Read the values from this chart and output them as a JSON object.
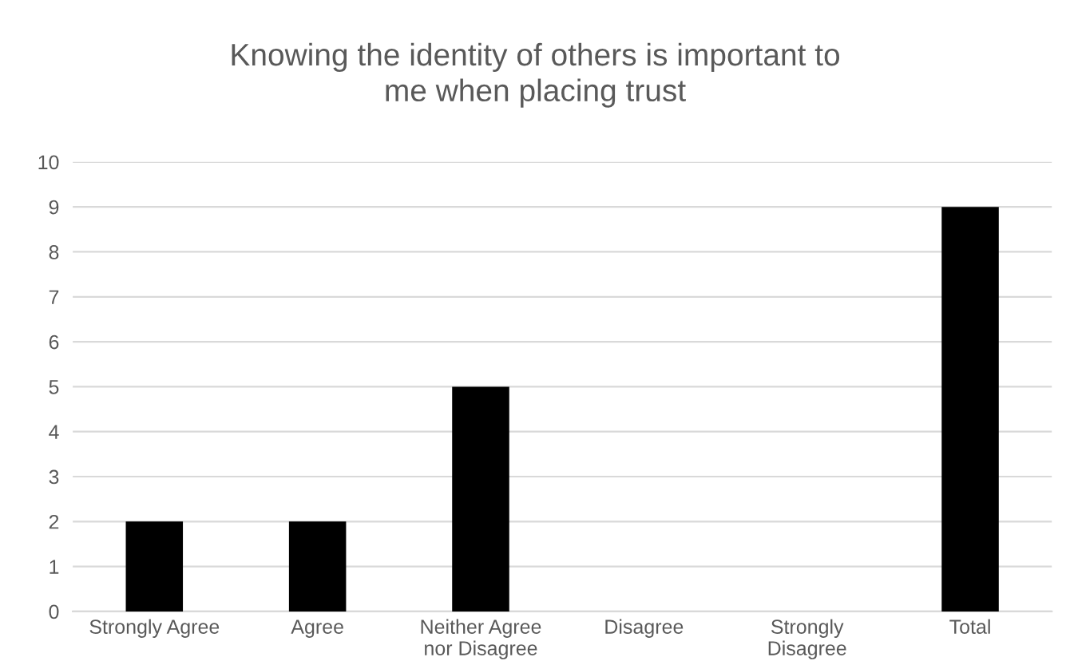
{
  "chart_data": {
    "type": "bar",
    "title": "Knowing the identity of others is important to me when placing trust",
    "categories": [
      "Strongly Agree",
      "Agree",
      "Neither Agree nor Disagree",
      "Disagree",
      "Strongly Disagree",
      "Total"
    ],
    "values": [
      2,
      2,
      5,
      0,
      0,
      9
    ],
    "color": "#000000",
    "ylim": [
      0,
      10
    ],
    "yticks": [
      0,
      1,
      2,
      3,
      4,
      5,
      6,
      7,
      8,
      9,
      10
    ],
    "grid": "y"
  }
}
